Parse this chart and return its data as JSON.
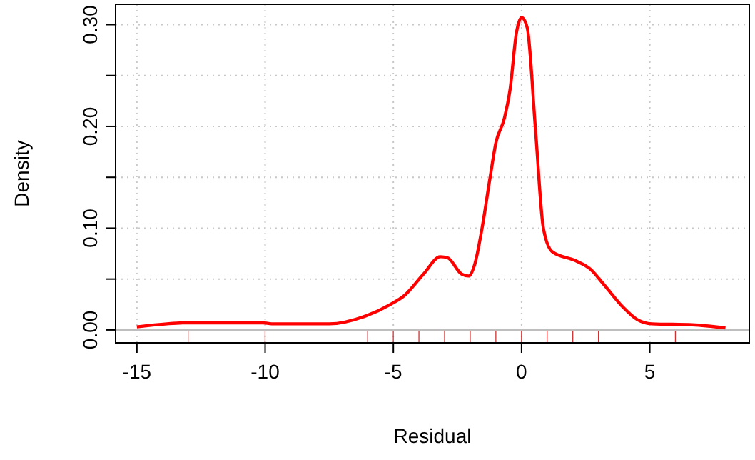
{
  "chart_data": {
    "type": "line",
    "xlabel": "Residual",
    "ylabel": "Density",
    "xlim": [
      -15.83,
      8.88
    ],
    "ylim": [
      -0.0127,
      0.32
    ],
    "xticks": [
      -15,
      -10,
      -5,
      0,
      5
    ],
    "yticks": [
      {
        "value": 0,
        "label": "0.00"
      },
      {
        "value": 0.05,
        "label": null
      },
      {
        "value": 0.1,
        "label": "0.10"
      },
      {
        "value": 0.15,
        "label": null
      },
      {
        "value": 0.2,
        "label": "0.20"
      },
      {
        "value": 0.25,
        "label": null
      },
      {
        "value": 0.3,
        "label": "0.30"
      }
    ],
    "grid": true,
    "ref_lines": [
      {
        "axis": "y",
        "value": 0,
        "color": "#bebebe"
      }
    ],
    "series": [
      {
        "color": "#ff0000",
        "x": [
          -15,
          -13.83,
          -13.04,
          -10.07,
          -9.75,
          -7.5,
          -6.05,
          -5.12,
          -4.56,
          -3.82,
          -3.17,
          -2.89,
          -2.34,
          -2.06,
          -1.82,
          -1.54,
          -1.22,
          -1,
          -0.67,
          -0.45,
          -0.2,
          0,
          0.22,
          0.54,
          0.85,
          1.19,
          2.11,
          2.67,
          3.23,
          3.97,
          4.52,
          5.08,
          6.66,
          7.95
        ],
        "values": [
          0.003,
          0.006,
          0.007,
          0.007,
          0.006,
          0.006,
          0.014,
          0.025,
          0.034,
          0.055,
          0.072,
          0.071,
          0.055,
          0.053,
          0.065,
          0.1,
          0.151,
          0.184,
          0.208,
          0.236,
          0.292,
          0.307,
          0.297,
          0.198,
          0.1,
          0.077,
          0.068,
          0.06,
          0.044,
          0.022,
          0.01,
          0.006,
          0.005,
          0.002
        ]
      },
      {
        "type": "bar",
        "color": "#d03030",
        "x": [
          -13,
          -10,
          -6,
          -5,
          -4,
          -3,
          -2,
          -1,
          0,
          1,
          2,
          3,
          6
        ],
        "values": [
          -0.012,
          -0.012,
          -0.012,
          -0.012,
          -0.012,
          -0.012,
          -0.012,
          -0.012,
          -0.012,
          -0.012,
          -0.012,
          -0.012,
          -0.012
        ]
      }
    ]
  }
}
